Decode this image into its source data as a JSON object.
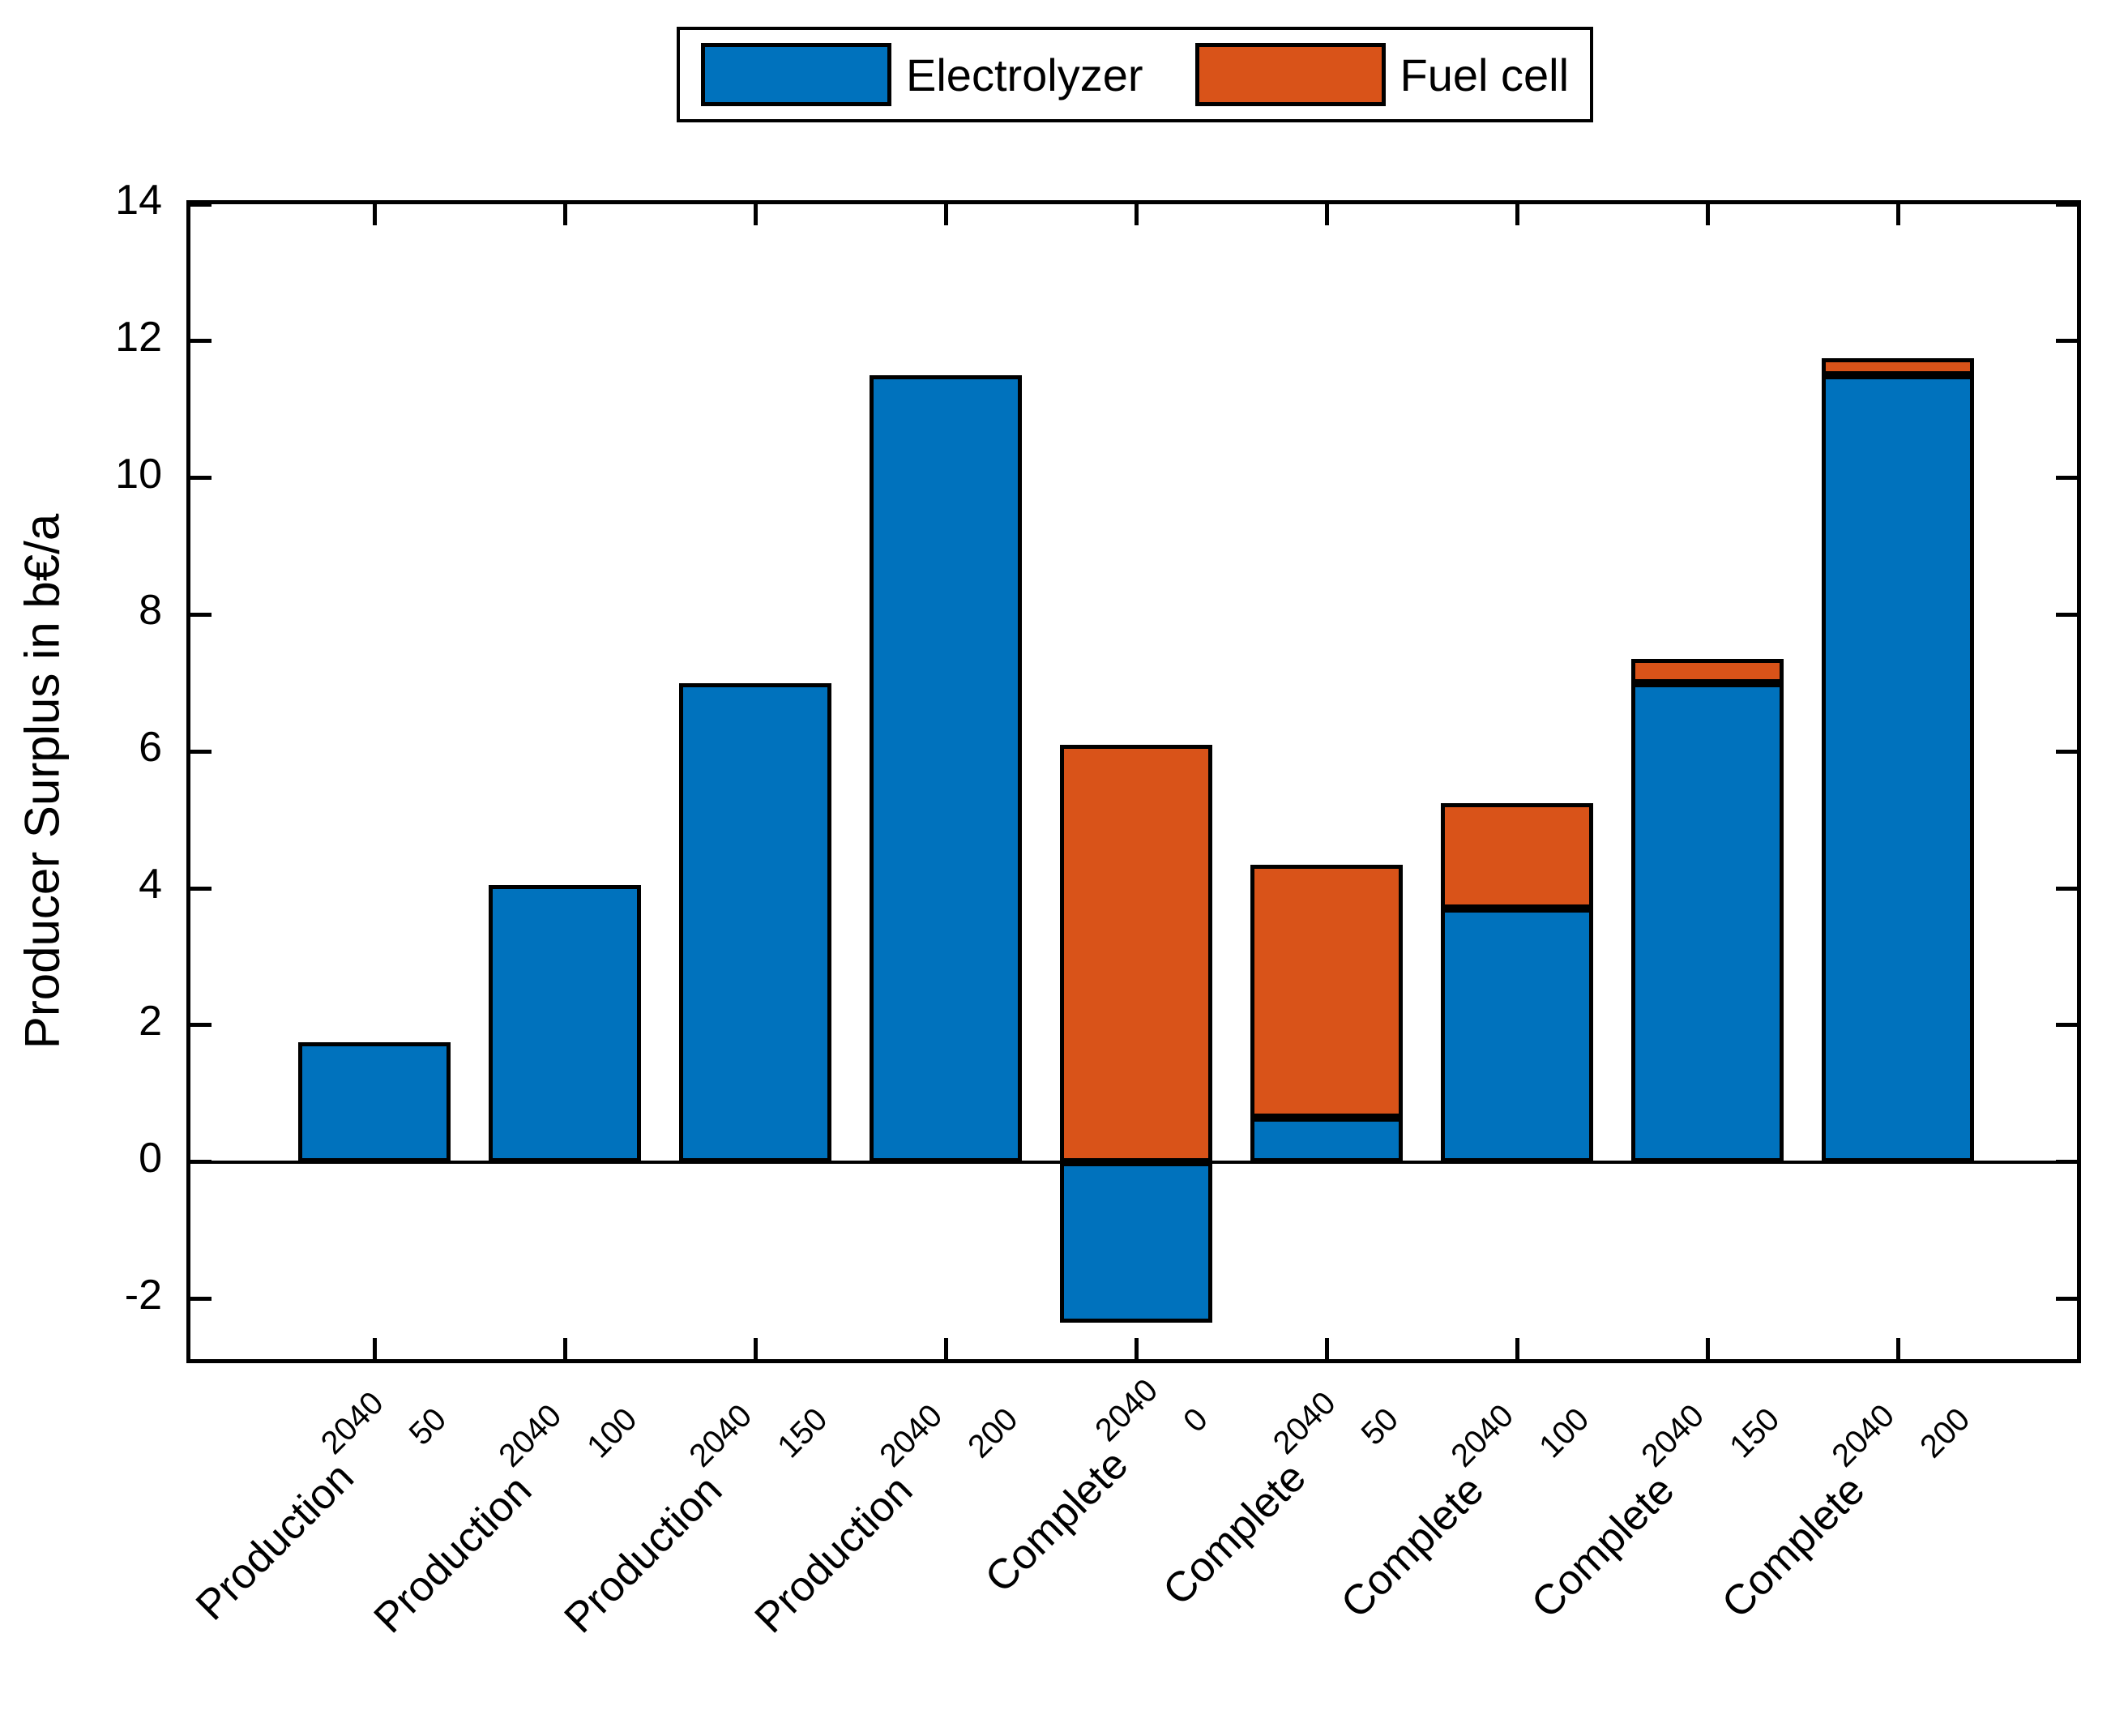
{
  "figure": {
    "background": "#ffffff"
  },
  "legend": {
    "items": [
      {
        "label": "Electrolyzer",
        "color": "#0072BD"
      },
      {
        "label": "Fuel cell",
        "color": "#D95319"
      }
    ]
  },
  "y_axis": {
    "title": "Producer Surplus in b€/a",
    "ticks": [
      14,
      12,
      10,
      8,
      6,
      4,
      2,
      0,
      -2
    ],
    "min": -3,
    "max": 14
  },
  "chart_data": {
    "type": "bar",
    "stacked": true,
    "title": "",
    "xlabel": "",
    "ylabel": "Producer Surplus in b€/a",
    "ylim": [
      -3,
      14
    ],
    "grid": false,
    "legend_position": "top-center",
    "categories": [
      {
        "name": "Production",
        "sup": "2040",
        "sub": "50"
      },
      {
        "name": "Production",
        "sup": "2040",
        "sub": "100"
      },
      {
        "name": "Production",
        "sup": "2040",
        "sub": "150"
      },
      {
        "name": "Production",
        "sup": "2040",
        "sub": "200"
      },
      {
        "name": "Complete",
        "sup": "2040",
        "sub": "0"
      },
      {
        "name": "Complete",
        "sup": "2040",
        "sub": "50"
      },
      {
        "name": "Complete",
        "sup": "2040",
        "sub": "100"
      },
      {
        "name": "Complete",
        "sup": "2040",
        "sub": "150"
      },
      {
        "name": "Complete",
        "sup": "2040",
        "sub": "200"
      }
    ],
    "series": [
      {
        "name": "Electrolyzer",
        "color": "#0072BD",
        "values": [
          1.75,
          4.05,
          7.0,
          11.5,
          -2.35,
          0.65,
          3.7,
          7.0,
          11.5
        ]
      },
      {
        "name": "Fuel cell",
        "color": "#D95319",
        "values": [
          0,
          0,
          0,
          0,
          6.1,
          3.7,
          1.55,
          0.35,
          0.25
        ]
      }
    ]
  }
}
